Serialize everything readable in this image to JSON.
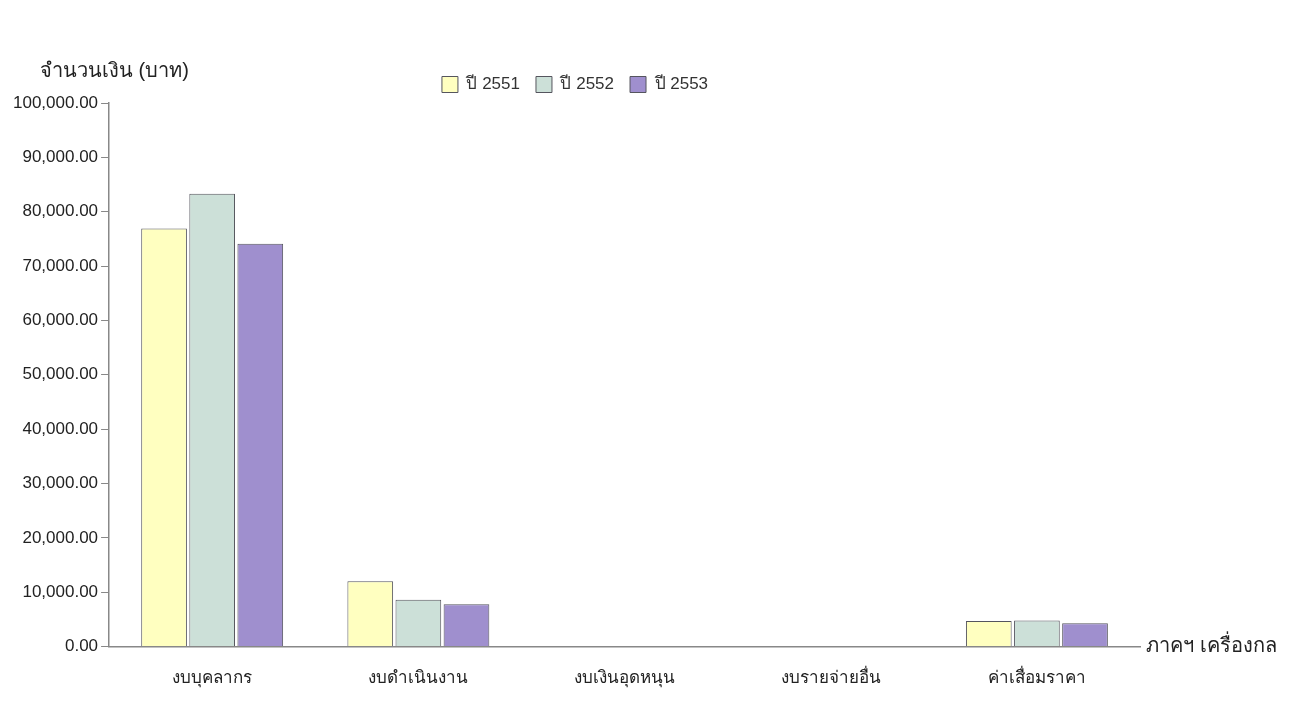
{
  "chart_data": {
    "type": "bar",
    "ylabel": "จำนวนเงิน (บาท)",
    "xlabel": "ภาคฯ เครื่องกล",
    "categories": [
      "งบบุคลากร",
      "งบดำเนินงาน",
      "งบเงินอุดหนุน",
      "งบรายจ่ายอื่น",
      "ค่าเสื่อมราคา"
    ],
    "series": [
      {
        "name": "ปี 2551",
        "color": "#ffffc0",
        "values": [
          76900,
          12000,
          0,
          0,
          4700
        ]
      },
      {
        "name": "ปี 2552",
        "color": "#cce0d8",
        "values": [
          83300,
          8600,
          0,
          0,
          4800
        ]
      },
      {
        "name": "ปี 2553",
        "color": "#9f8fce",
        "values": [
          74100,
          7800,
          0,
          0,
          4300
        ]
      }
    ],
    "ylim": [
      0,
      100000
    ],
    "yticks": [
      {
        "value": 0,
        "label": "0.00"
      },
      {
        "value": 10000,
        "label": "10,000.00"
      },
      {
        "value": 20000,
        "label": "20,000.00"
      },
      {
        "value": 30000,
        "label": "30,000.00"
      },
      {
        "value": 40000,
        "label": "40,000.00"
      },
      {
        "value": 50000,
        "label": "50,000.00"
      },
      {
        "value": 60000,
        "label": "60,000.00"
      },
      {
        "value": 70000,
        "label": "70,000.00"
      },
      {
        "value": 80000,
        "label": "80,000.00"
      },
      {
        "value": 90000,
        "label": "90,000.00"
      },
      {
        "value": 100000,
        "label": "100,000.00"
      }
    ],
    "grid": false,
    "legend": "top"
  }
}
